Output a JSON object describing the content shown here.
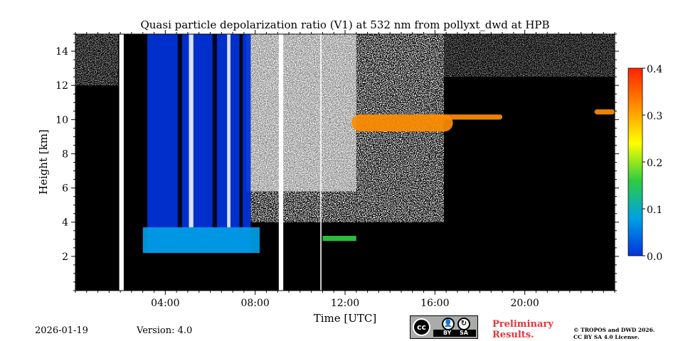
{
  "chart_data": {
    "type": "heatmap",
    "title": "Quasi particle depolarization ratio (V1) at 532 nm from pollyxt_dwd at HPB",
    "xlabel": "Time [UTC]",
    "ylabel": "Height [km]",
    "xlim": [
      0,
      24
    ],
    "ylim": [
      0,
      15
    ],
    "x_ticks": [
      {
        "value": 4,
        "label": "04:00"
      },
      {
        "value": 8,
        "label": "08:00"
      },
      {
        "value": 12,
        "label": "12:00"
      },
      {
        "value": 16,
        "label": "16:00"
      },
      {
        "value": 20,
        "label": "20:00"
      }
    ],
    "y_ticks": [
      {
        "value": 2,
        "label": "2"
      },
      {
        "value": 4,
        "label": "4"
      },
      {
        "value": 6,
        "label": "6"
      },
      {
        "value": 8,
        "label": "8"
      },
      {
        "value": 10,
        "label": "10"
      },
      {
        "value": 12,
        "label": "12"
      },
      {
        "value": 14,
        "label": "14"
      }
    ],
    "colorbar": {
      "range": [
        0.0,
        0.4
      ],
      "ticks": [
        {
          "value": 0.0,
          "label": "0.0"
        },
        {
          "value": 0.1,
          "label": "0.1"
        },
        {
          "value": 0.2,
          "label": "0.2"
        },
        {
          "value": 0.3,
          "label": "0.3"
        },
        {
          "value": 0.4,
          "label": "0.4"
        }
      ],
      "colors": [
        "#0033dd",
        "#00a0e6",
        "#2ecc40",
        "#ffff00",
        "#ff8c00",
        "#ff2200"
      ]
    },
    "background_color": "#000000",
    "noise_color": "#ffffff",
    "data_gaps": [
      {
        "start": 1.95,
        "end": 2.15
      },
      {
        "start": 9.05,
        "end": 9.25
      },
      {
        "start": 10.9,
        "end": 10.95
      }
    ],
    "regions": [
      {
        "name": "low depolarization cloud fall streaks",
        "t_start": 3.2,
        "t_end": 7.8,
        "h_bottom": 2.2,
        "h_top": 15.0,
        "depol": 0.02
      },
      {
        "name": "cloud layer base",
        "t_start": 3.0,
        "t_end": 8.2,
        "h_bottom": 2.2,
        "h_top": 3.7,
        "depol": 0.08
      },
      {
        "name": "cirrus layer",
        "t_start": 12.3,
        "t_end": 16.8,
        "h_bottom": 9.3,
        "h_top": 10.3,
        "depol": 0.3
      },
      {
        "name": "cirrus layer",
        "t_start": 15.8,
        "t_end": 19.0,
        "h_bottom": 10.0,
        "h_top": 10.3,
        "depol": 0.32
      },
      {
        "name": "cirrus layer",
        "t_start": 23.1,
        "t_end": 24.0,
        "h_bottom": 10.3,
        "h_top": 10.6,
        "depol": 0.3
      },
      {
        "name": "aerosol traces",
        "t_start": 11.0,
        "t_end": 12.5,
        "h_bottom": 2.9,
        "h_top": 3.2,
        "depol": 0.15
      }
    ]
  },
  "footer": {
    "date": "2026-01-19",
    "version": "Version: 4.0",
    "preliminary_line1": "Preliminary",
    "preliminary_line2": "Results.",
    "copyright_line1": "© TROPOS and DWD 2026.",
    "copyright_line2": "CC BY SA 4.0 License.",
    "license_badge": {
      "cc": "cc",
      "by": "BY",
      "sa": "SA"
    }
  }
}
